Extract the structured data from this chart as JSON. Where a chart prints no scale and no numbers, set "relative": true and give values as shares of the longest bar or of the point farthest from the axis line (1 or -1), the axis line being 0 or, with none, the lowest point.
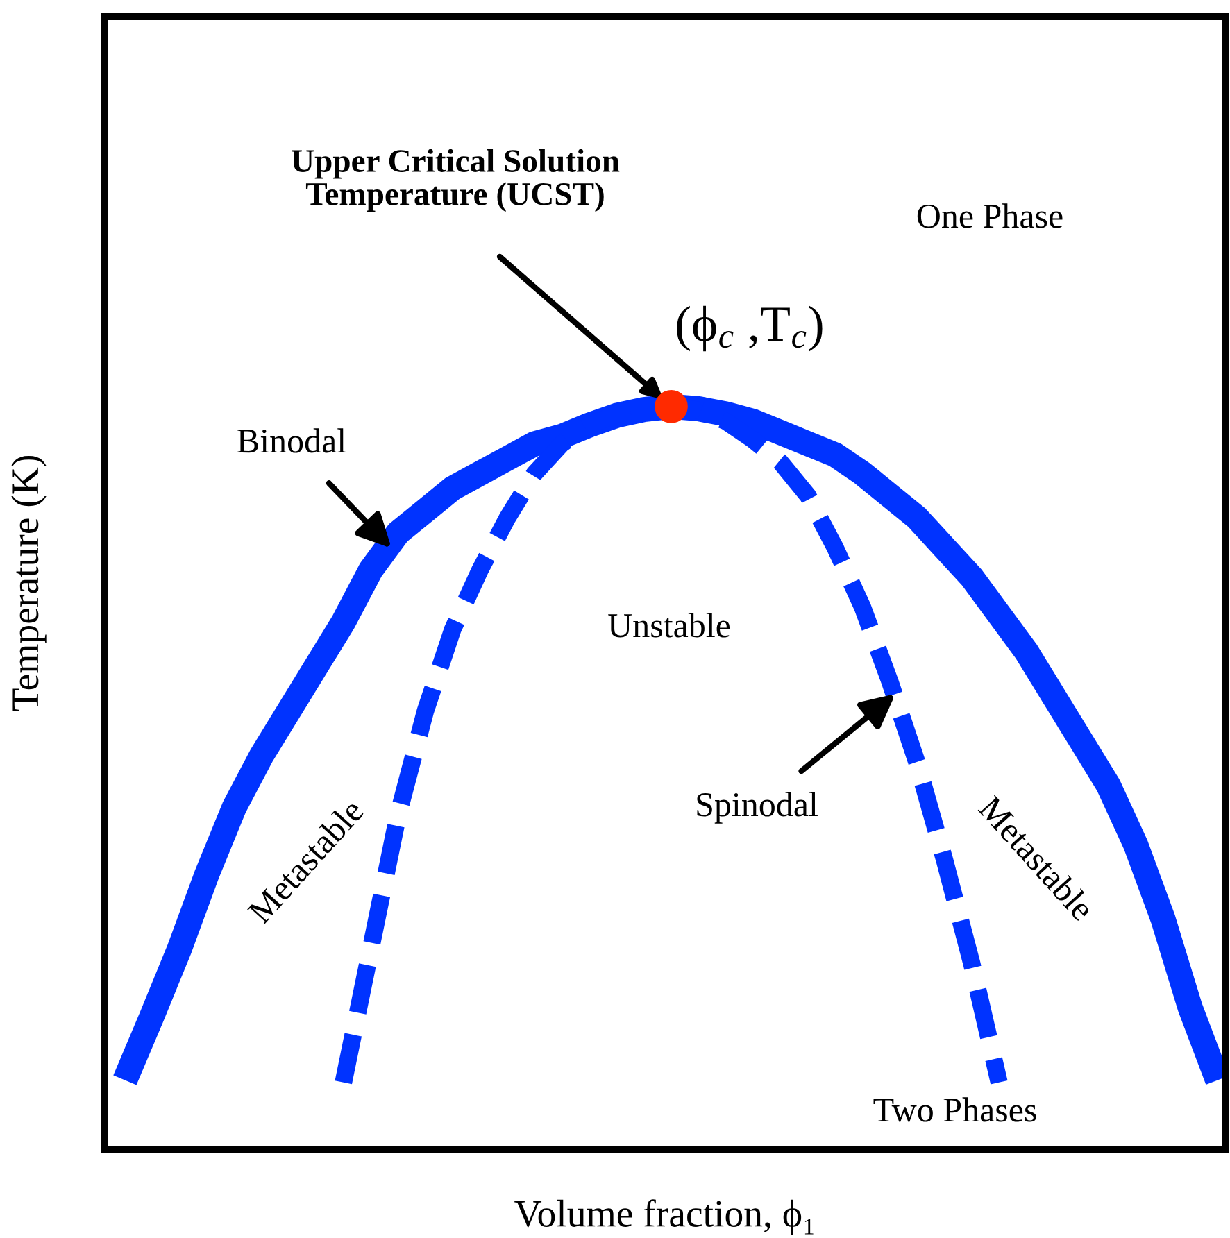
{
  "chart_data": {
    "type": "line",
    "relative": true,
    "xlabel": "Volume fraction, ϕ₁",
    "ylabel": "Temperature (K)",
    "categories": [
      null,
      null,
      null,
      null,
      null,
      null,
      null,
      null,
      null,
      null,
      null,
      null,
      null,
      null,
      null,
      null,
      null,
      null,
      null,
      null,
      null,
      null,
      null,
      null,
      null,
      null,
      null,
      null,
      null,
      null,
      null,
      null,
      null,
      null,
      null,
      null,
      null,
      null,
      null,
      null,
      null
    ],
    "series": [
      {
        "name": "Binodal",
        "color": "#0033ff",
        "line_style": "solid",
        "values": [
          0.093,
          0.18,
          0.27,
          0.37,
          0.46,
          0.53,
          0.59,
          0.65,
          0.71,
          0.78,
          0.83,
          0.86,
          0.89,
          0.91,
          0.93,
          0.95,
          0.96,
          0.975,
          0.988,
          0.996,
          1,
          0.997,
          0.99,
          0.98,
          0.965,
          0.95,
          0.935,
          0.91,
          0.88,
          0.85,
          0.81,
          0.77,
          0.72,
          0.67,
          0.61,
          0.55,
          0.49,
          0.41,
          0.31,
          0.19,
          0.093
        ]
      },
      {
        "name": "Spinodal",
        "color": "#0033ff",
        "line_style": "dashed",
        "values": [
          null,
          null,
          null,
          null,
          null,
          null,
          null,
          null,
          0.09,
          0.27,
          0.45,
          0.59,
          0.7,
          0.78,
          0.85,
          0.91,
          0.95,
          0.975,
          0.99,
          0.998,
          1,
          0.995,
          0.98,
          0.955,
          0.925,
          0.88,
          0.81,
          0.73,
          0.63,
          0.52,
          0.39,
          0.25,
          0.09,
          null,
          null,
          null,
          null,
          null,
          null,
          null,
          null
        ]
      }
    ],
    "annotations": [
      "Upper Critical Solution\nTemperature (UCST)",
      "One Phase",
      "(ϕ$_{c}$ ,T$_{c}$)",
      "Unstable",
      "Metastable",
      "Metastable",
      "Two Phases"
    ],
    "legend": false,
    "grid": false,
    "tick_labels": false
  }
}
